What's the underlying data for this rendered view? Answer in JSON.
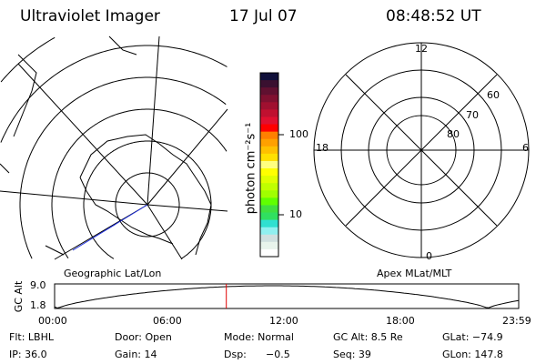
{
  "header": {
    "title": "Ultraviolet Imager",
    "date": "17 Jul 07",
    "time": "08:48:52 UT"
  },
  "colorbar": {
    "label": "photon cm⁻²s⁻¹",
    "ticks": [
      "100",
      "10"
    ],
    "colors": [
      "#10103a",
      "#3a1030",
      "#601030",
      "#801030",
      "#a01030",
      "#c01030",
      "#e01030",
      "#ff0000",
      "#ff8000",
      "#ffa000",
      "#ffc000",
      "#ffe000",
      "#ffff80",
      "#ffff00",
      "#e0ff00",
      "#c0ff00",
      "#a0ff00",
      "#60ff00",
      "#40e040",
      "#30e060",
      "#30e0d0",
      "#90f0f0",
      "#d0e0e0",
      "#e8f4ec",
      "#ffffff"
    ]
  },
  "left_plot": {
    "label": "Geographic Lat/Lon"
  },
  "right_plot": {
    "label": "Apex MLat/MLT",
    "mlt_labels": {
      "top": "12",
      "left": "18",
      "right": "6",
      "bottom": "0"
    },
    "lat_labels": [
      "60",
      "70",
      "80"
    ]
  },
  "altitude_plot": {
    "ylabel": "GC Alt",
    "yticks": [
      "9.0",
      "1.8"
    ],
    "xticks": [
      "00:00",
      "06:00",
      "12:00",
      "18:00",
      "23:59"
    ],
    "current_time_fraction": 0.37,
    "marker_color": "#e00000"
  },
  "status": {
    "flt": "Flt: LBHL",
    "door": "Door: Open",
    "mode": "Mode: Normal",
    "gcalt": "GC Alt: 8.5 Re",
    "glat": "GLat: −74.9",
    "ip": "IP: 36.0",
    "gain": "Gain: 14",
    "dsp_label": "Dsp:",
    "dsp_value": "−0.5",
    "seq": "Seq: 39",
    "glon": "GLon: 147.8"
  }
}
